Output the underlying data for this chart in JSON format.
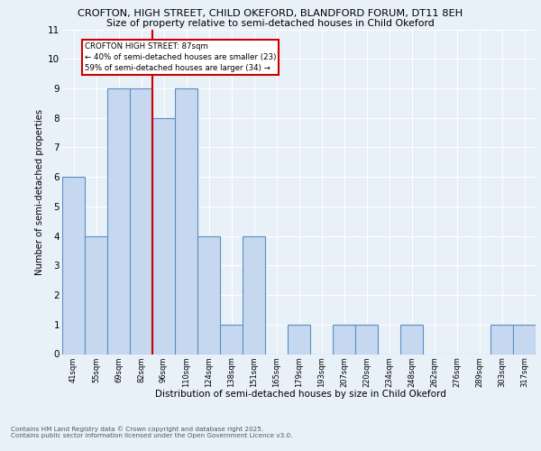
{
  "title_line1": "CROFTON, HIGH STREET, CHILD OKEFORD, BLANDFORD FORUM, DT11 8EH",
  "title_line2": "Size of property relative to semi-detached houses in Child Okeford",
  "xlabel": "Distribution of semi-detached houses by size in Child Okeford",
  "ylabel": "Number of semi-detached properties",
  "categories": [
    "41sqm",
    "55sqm",
    "69sqm",
    "82sqm",
    "96sqm",
    "110sqm",
    "124sqm",
    "138sqm",
    "151sqm",
    "165sqm",
    "179sqm",
    "193sqm",
    "207sqm",
    "220sqm",
    "234sqm",
    "248sqm",
    "262sqm",
    "276sqm",
    "289sqm",
    "303sqm",
    "317sqm"
  ],
  "values": [
    6,
    4,
    9,
    9,
    8,
    9,
    4,
    1,
    4,
    0,
    1,
    0,
    1,
    1,
    0,
    1,
    0,
    0,
    0,
    1,
    1
  ],
  "bar_color": "#c5d8f0",
  "bar_edge_color": "#5a8fc2",
  "vline_x": 3.5,
  "annotation_text": "CROFTON HIGH STREET: 87sqm\n← 40% of semi-detached houses are smaller (23)\n59% of semi-detached houses are larger (34) →",
  "annotation_box_color": "#ffffff",
  "annotation_box_edge": "#cc0000",
  "vline_color": "#cc0000",
  "ylim": [
    0,
    11
  ],
  "yticks": [
    0,
    1,
    2,
    3,
    4,
    5,
    6,
    7,
    8,
    9,
    10,
    11
  ],
  "background_color": "#e8f0f8",
  "grid_color": "#ffffff",
  "footer": "Contains HM Land Registry data © Crown copyright and database right 2025.\nContains public sector information licensed under the Open Government Licence v3.0."
}
